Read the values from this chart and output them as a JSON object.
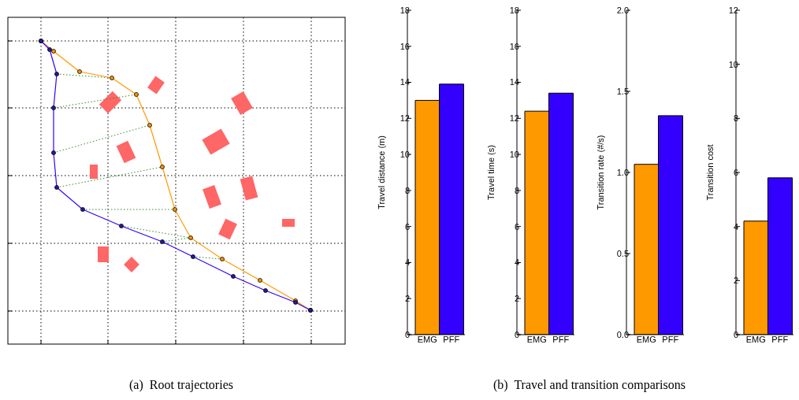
{
  "chart_data": [
    {
      "type": "other",
      "annotations": [
        "(a)  Root trajectories"
      ]
    },
    {
      "type": "bar",
      "categories": [
        "EMG",
        "PFF"
      ],
      "values": [
        13.0,
        13.9
      ],
      "colors": [
        "#ff9900",
        "#3300ff"
      ],
      "ylabel": "Travel distance (m)",
      "ylim": [
        0,
        18
      ],
      "yticks": [
        0,
        2,
        4,
        6,
        8,
        10,
        12,
        14,
        16,
        18
      ],
      "annotations": [
        "(b)  Travel and transition comparisons"
      ]
    },
    {
      "type": "bar",
      "categories": [
        "EMG",
        "PFF"
      ],
      "values": [
        12.4,
        13.4
      ],
      "colors": [
        "#ff9900",
        "#3300ff"
      ],
      "ylabel": "Travel time (s)",
      "ylim": [
        0,
        18
      ],
      "yticks": [
        0,
        2,
        4,
        6,
        8,
        10,
        12,
        14,
        16,
        18
      ]
    },
    {
      "type": "bar",
      "categories": [
        "EMG",
        "PFF"
      ],
      "values": [
        1.05,
        1.35
      ],
      "colors": [
        "#ff9900",
        "#3300ff"
      ],
      "ylabel": "Transition rate (#/s)",
      "ylim": [
        0,
        2
      ],
      "yticks": [
        {
          "value": 0,
          "label": "0.0"
        },
        0.5,
        {
          "value": 1,
          "label": "1.0"
        },
        1.5,
        {
          "value": 2,
          "label": "2.0"
        }
      ]
    },
    {
      "type": "bar",
      "categories": [
        "EMG",
        "PFF"
      ],
      "values": [
        4.2,
        5.8
      ],
      "colors": [
        "#ff9900",
        "#3300ff"
      ],
      "ylabel": "Transition cost",
      "ylim": [
        0,
        12
      ],
      "yticks": [
        0,
        2,
        4,
        6,
        8,
        10,
        12
      ]
    }
  ]
}
